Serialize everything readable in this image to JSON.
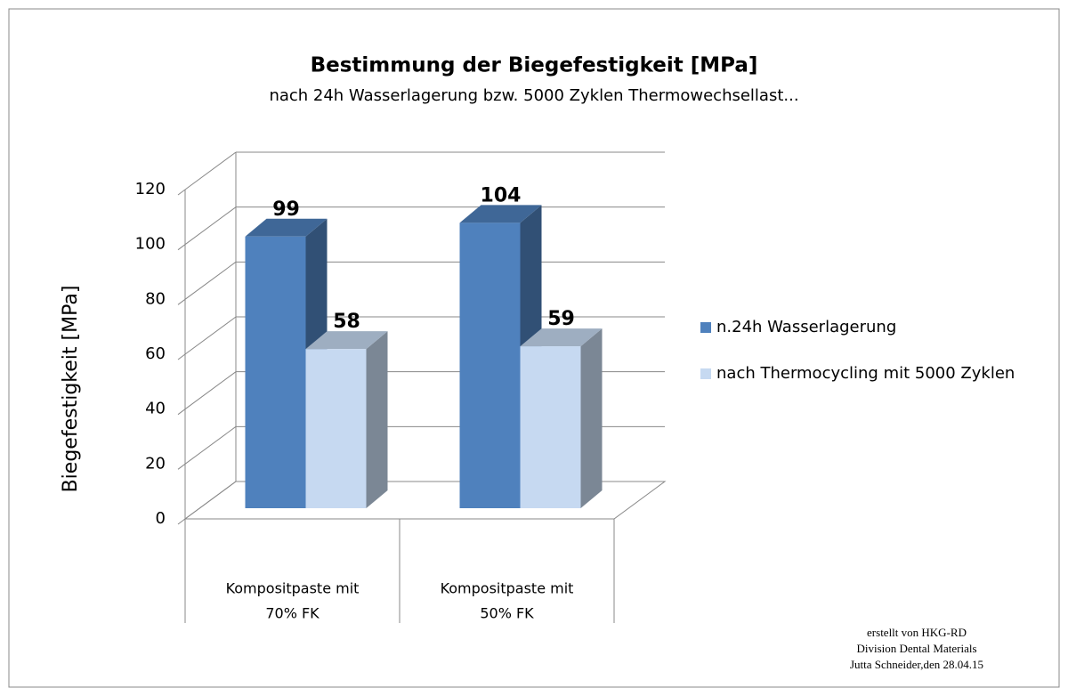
{
  "chart_data": {
    "type": "bar3d",
    "title": "Bestimmung  der Biegefestigkeit [MPa]",
    "subtitle": "nach 24h Wasserlagerung  bzw. 5000 Zyklen Thermowechsellast...",
    "y_label": "Biegefestigkeit [MPa]",
    "categories": [
      [
        "Kompositpaste mit",
        "70% FK"
      ],
      [
        "Kompositpaste mit",
        "50% FK"
      ]
    ],
    "series": [
      {
        "name": "n.24h Wasserlagerung",
        "color": "#4f81bd",
        "values": [
          99,
          104
        ]
      },
      {
        "name": "nach Thermocycling mit 5000 Zyklen",
        "color": "#c6d9f1",
        "values": [
          58,
          59
        ]
      }
    ],
    "ylim": [
      0,
      120
    ],
    "yticks": [
      0,
      20,
      40,
      60,
      80,
      100,
      120
    ],
    "grid": true,
    "legend": "right",
    "note": [
      "erstellt von  HKG-RD",
      "Division  Dental Materials",
      "Jutta Schneider,den 28.04.15"
    ]
  }
}
